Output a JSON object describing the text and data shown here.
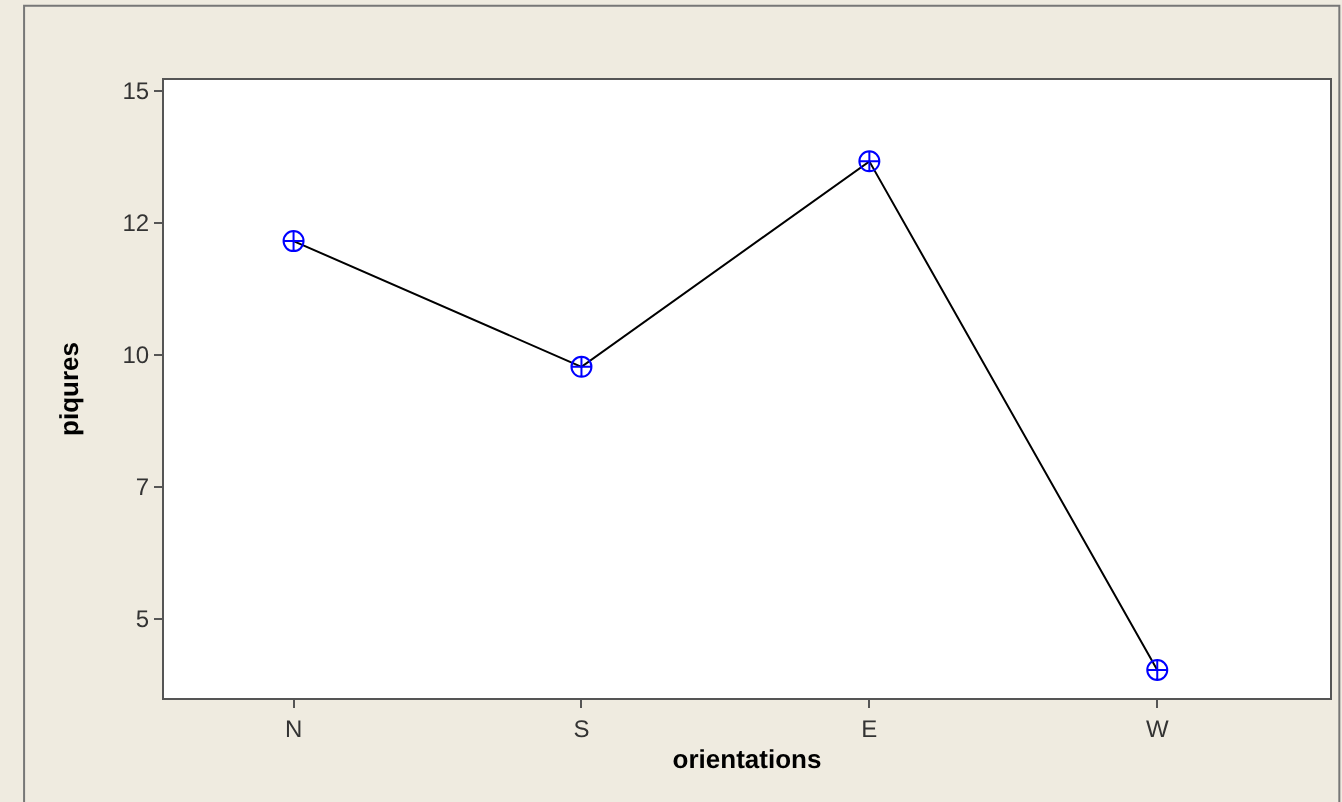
{
  "chart_data": {
    "type": "line",
    "xlabel": "orientations",
    "ylabel": "piqures",
    "categories": [
      "N",
      "S",
      "E",
      "W"
    ],
    "series": [
      {
        "color": "#0000ff",
        "values": [
          12.15,
          9.77,
          13.66,
          4.03
        ]
      }
    ],
    "ylim": [
      3.5,
      15.2
    ],
    "yticks": [
      {
        "value": 5,
        "label": "5"
      },
      {
        "value": 7.5,
        "label": "7"
      },
      {
        "value": 10,
        "label": "10"
      },
      {
        "value": 12.5,
        "label": "12"
      },
      {
        "value": 15,
        "label": "15"
      }
    ],
    "grid": false,
    "marker": "cross",
    "line_style": "solid"
  }
}
